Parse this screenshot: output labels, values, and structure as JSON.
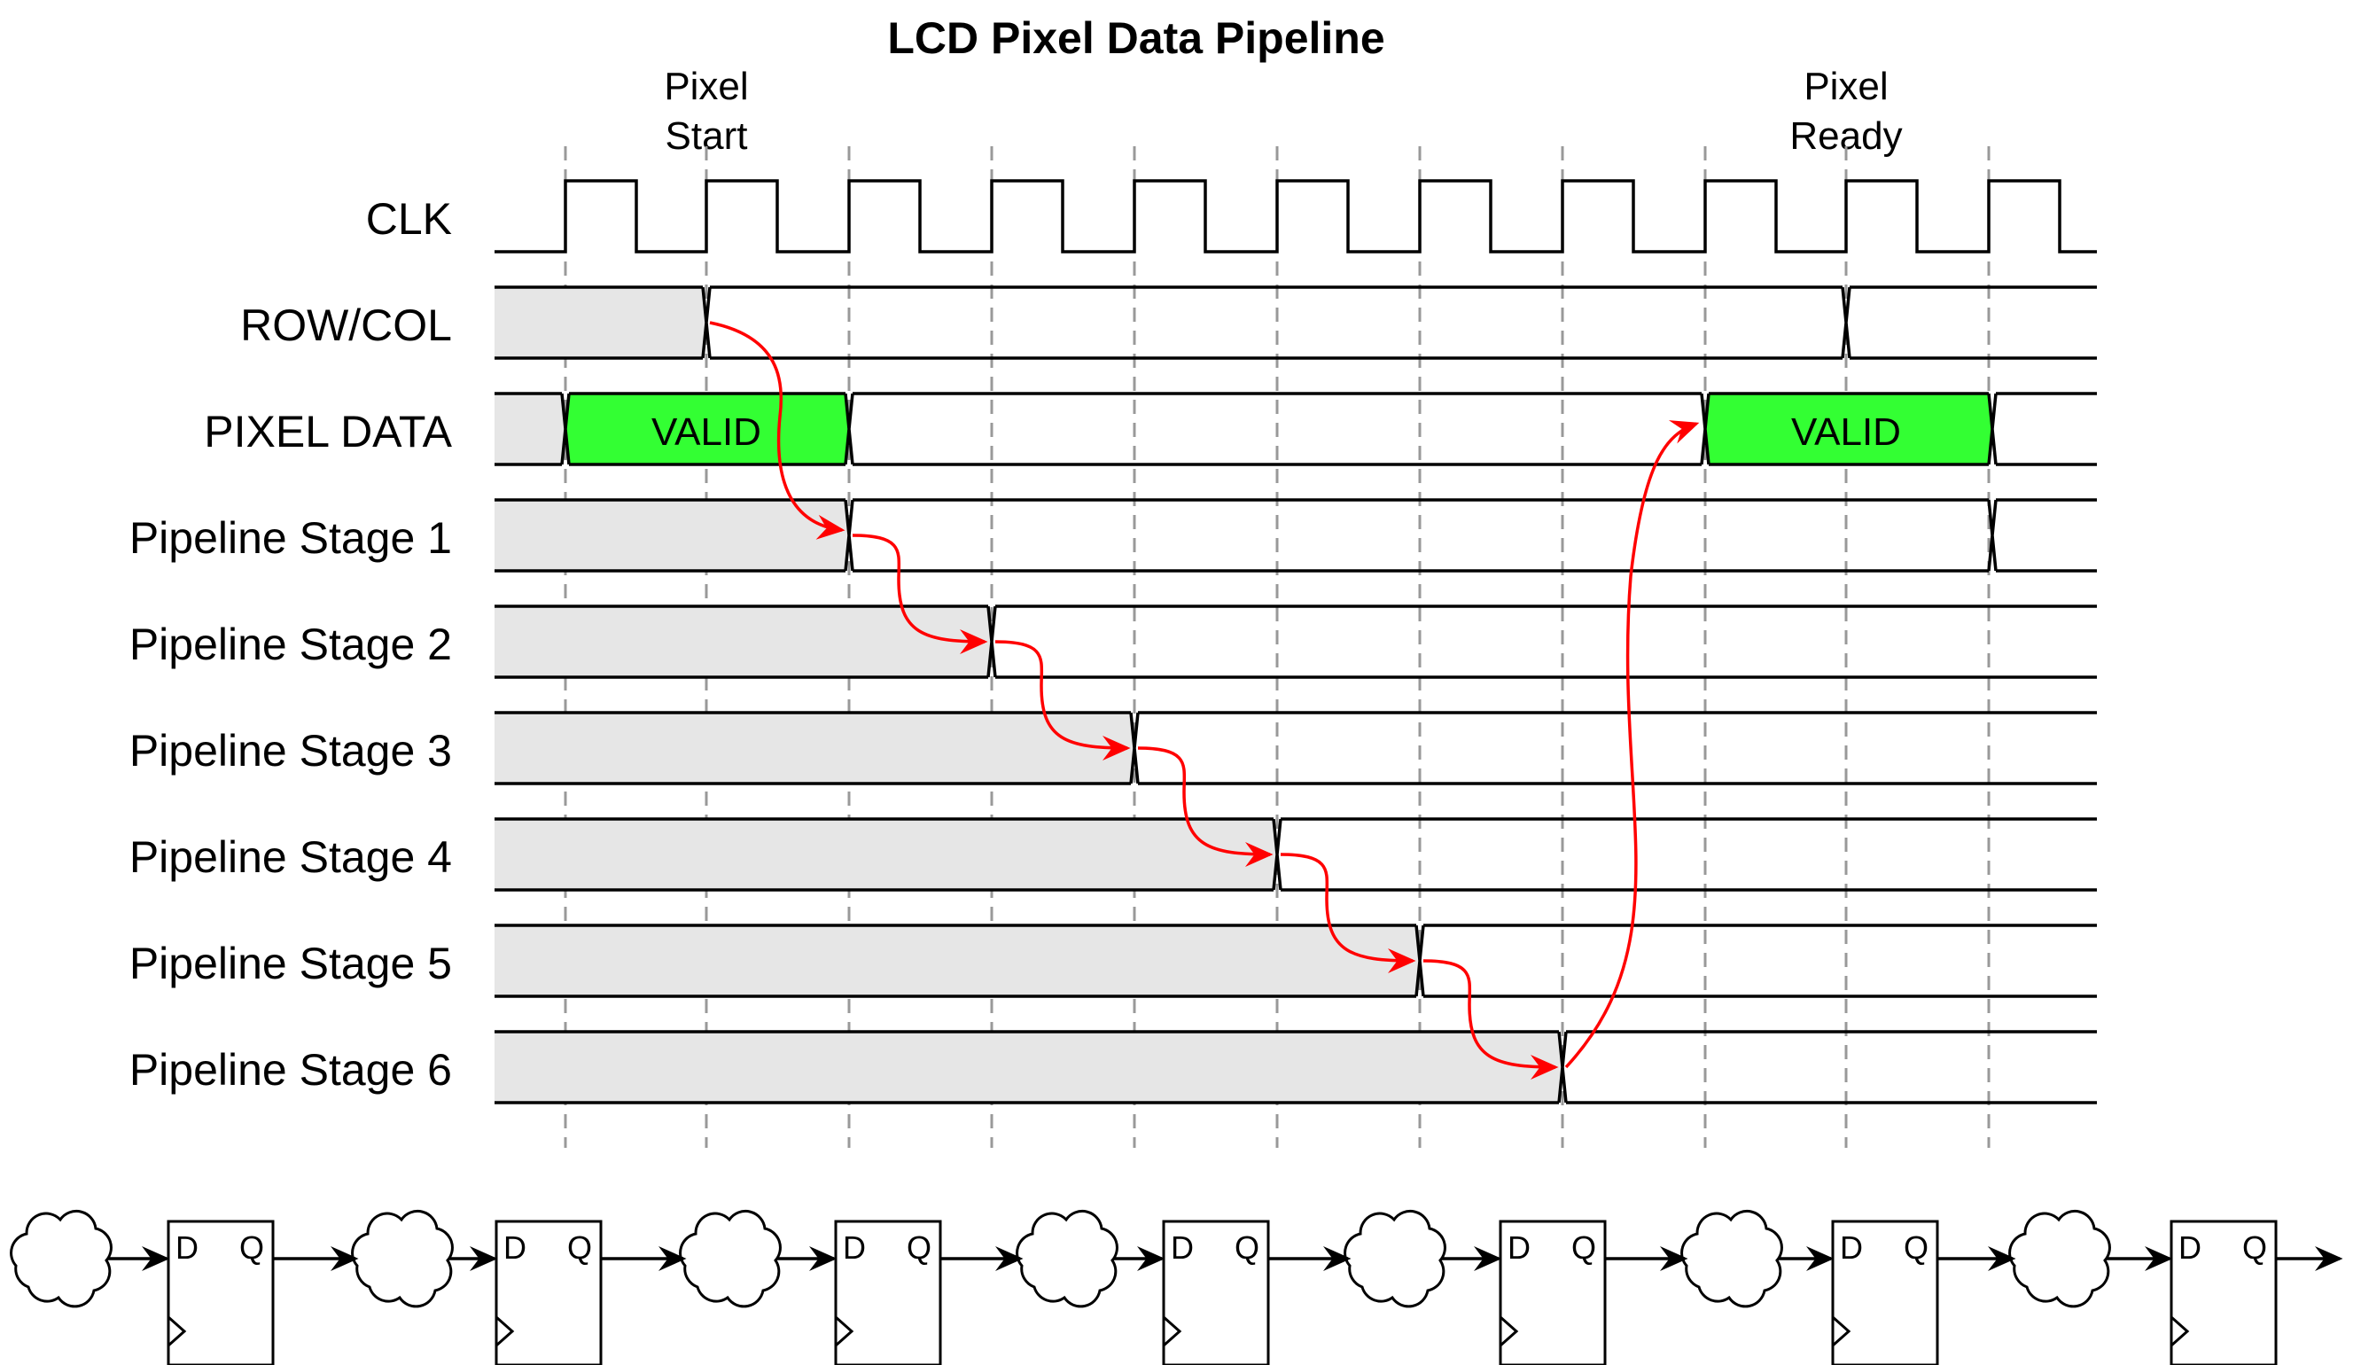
{
  "title": "LCD Pixel Data Pipeline",
  "markers": {
    "start": {
      "line1": "Pixel",
      "line2": "Start"
    },
    "ready": {
      "line1": "Pixel",
      "line2": "Ready"
    }
  },
  "signals": [
    {
      "label": "CLK"
    },
    {
      "label": "ROW/COL"
    },
    {
      "label": "PIXEL DATA",
      "valid_label": "VALID"
    },
    {
      "label": "Pipeline Stage 1"
    },
    {
      "label": "Pipeline Stage 2"
    },
    {
      "label": "Pipeline Stage 3"
    },
    {
      "label": "Pipeline Stage 4"
    },
    {
      "label": "Pipeline Stage 5"
    },
    {
      "label": "Pipeline Stage 6"
    }
  ],
  "flipflop": {
    "d": "D",
    "q": "Q"
  },
  "colors": {
    "unknown": "#e6e6e6",
    "valid": "#33ff33",
    "arrow": "#ff0000",
    "line": "#000000",
    "grid": "#999999"
  }
}
